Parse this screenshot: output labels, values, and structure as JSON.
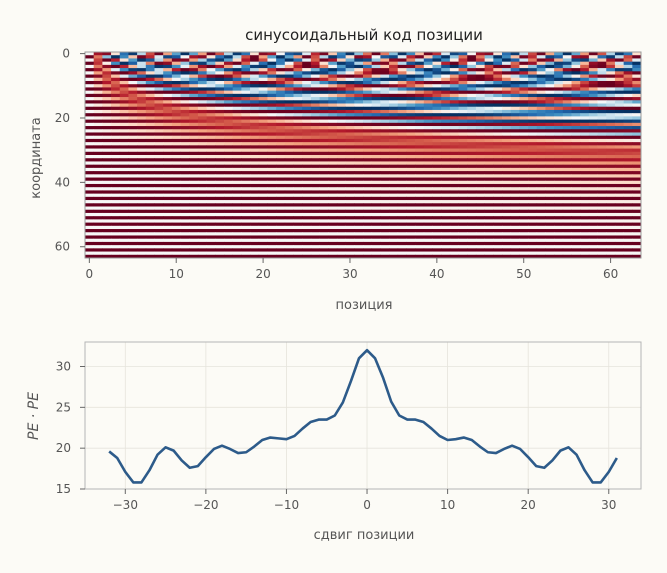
{
  "chart_data": [
    {
      "type": "heatmap",
      "title": "синусоидальный код позиции",
      "xlabel": "позиция",
      "ylabel": "координата",
      "x_range": [
        0,
        63
      ],
      "y_range": [
        0,
        63
      ],
      "xticks": [
        0,
        10,
        20,
        30,
        40,
        50,
        60
      ],
      "yticks": [
        0,
        20,
        40,
        60
      ],
      "colormap": "RdBu",
      "value_range": [
        -1,
        1
      ],
      "encoding": "sin for even rows, cos for odd rows; frequency 1/10000^(2i/64)",
      "grid": false,
      "colors": {
        "positive": "#67001f",
        "zero": "#f7f7f7",
        "negative": "#053061"
      }
    },
    {
      "type": "line",
      "xlabel": "сдвиг позиции",
      "ylabel": "PE · PE",
      "xticks": [
        -30,
        -20,
        -10,
        0,
        10,
        20,
        30
      ],
      "yticks": [
        15,
        20,
        25,
        30
      ],
      "xlim": [
        -35,
        34
      ],
      "ylim": [
        15,
        33
      ],
      "grid": true,
      "color": "#2d5b8a",
      "x": [
        -32,
        -31,
        -30,
        -29,
        -28,
        -27,
        -26,
        -25,
        -24,
        -23,
        -22,
        -21,
        -20,
        -19,
        -18,
        -17,
        -16,
        -15,
        -14,
        -13,
        -12,
        -11,
        -10,
        -9,
        -8,
        -7,
        -6,
        -5,
        -4,
        -3,
        -2,
        -1,
        0,
        1,
        2,
        3,
        4,
        5,
        6,
        7,
        8,
        9,
        10,
        11,
        12,
        13,
        14,
        15,
        16,
        17,
        18,
        19,
        20,
        21,
        22,
        23,
        24,
        25,
        26,
        27,
        28,
        29,
        30,
        31
      ],
      "y": [
        19.6,
        18.8,
        17.1,
        15.8,
        15.8,
        17.3,
        19.2,
        20.1,
        19.7,
        18.5,
        17.6,
        17.8,
        18.9,
        19.9,
        20.3,
        19.9,
        19.4,
        19.5,
        20.2,
        21.0,
        21.3,
        21.2,
        21.1,
        21.5,
        22.4,
        23.2,
        23.5,
        23.5,
        24.0,
        25.6,
        28.2,
        31.0,
        32.0,
        31.0,
        28.6,
        25.7,
        24.0,
        23.5,
        23.5,
        23.2,
        22.4,
        21.5,
        21.0,
        21.1,
        21.3,
        21.0,
        20.2,
        19.5,
        19.4,
        19.9,
        20.3,
        19.9,
        18.9,
        17.8,
        17.6,
        18.5,
        19.7,
        20.1,
        19.2,
        17.3,
        15.8,
        15.8,
        17.1,
        18.8
      ]
    }
  ]
}
